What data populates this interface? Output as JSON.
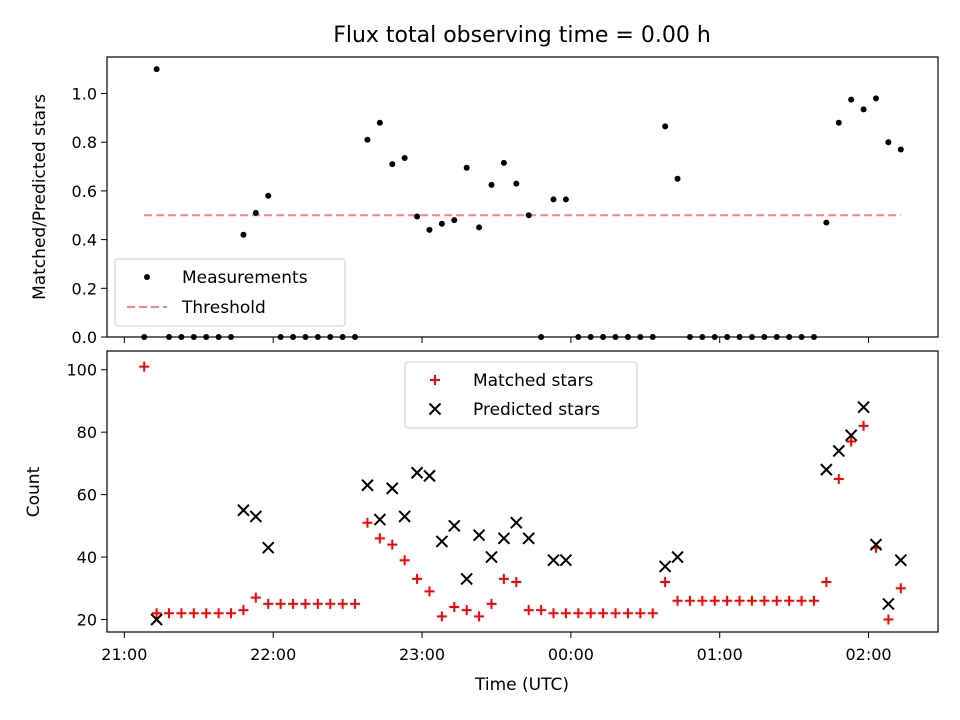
{
  "title": "Flux total observing time = 0.00 h",
  "colors": {
    "measurement": "#000000",
    "threshold": "#ff7f7f",
    "matched": "#ff0000",
    "predicted": "#000000"
  },
  "chart_data": [
    {
      "type": "scatter",
      "title": "Flux total observing time = 0.00 h",
      "xlabel": "",
      "ylabel": "Matched/Predicted stars",
      "x_axis_format": "HH:MM (UTC)",
      "xlim": [
        "2024-01-01T20:53",
        "2024-01-02T02:28"
      ],
      "ylim": [
        0,
        1.15
      ],
      "yticks": [
        0.0,
        0.2,
        0.4,
        0.6,
        0.8,
        1.0
      ],
      "ytick_labels": [
        "0.0",
        "0.2",
        "0.4",
        "0.6",
        "0.8",
        "1.0"
      ],
      "legend_position": "lower-left",
      "threshold": {
        "name": "Threshold",
        "value": 0.5,
        "x": [
          "21:08",
          "02:13"
        ]
      },
      "series": [
        {
          "name": "Measurements",
          "marker": "dot",
          "points": [
            [
              "21:08",
              0
            ],
            [
              "21:13",
              1.1
            ],
            [
              "21:18",
              0
            ],
            [
              "21:23",
              0
            ],
            [
              "21:28",
              0
            ],
            [
              "21:33",
              0
            ],
            [
              "21:38",
              0
            ],
            [
              "21:43",
              0
            ],
            [
              "21:48",
              0.42
            ],
            [
              "21:53",
              0.51
            ],
            [
              "21:58",
              0.58
            ],
            [
              "22:03",
              0
            ],
            [
              "22:08",
              0
            ],
            [
              "22:13",
              0
            ],
            [
              "22:18",
              0
            ],
            [
              "22:23",
              0
            ],
            [
              "22:28",
              0
            ],
            [
              "22:33",
              0
            ],
            [
              "22:38",
              0.81
            ],
            [
              "22:43",
              0.88
            ],
            [
              "22:48",
              0.71
            ],
            [
              "22:53",
              0.735
            ],
            [
              "22:58",
              0.495
            ],
            [
              "23:03",
              0.44
            ],
            [
              "23:08",
              0.465
            ],
            [
              "23:13",
              0.48
            ],
            [
              "23:18",
              0.695
            ],
            [
              "23:23",
              0.45
            ],
            [
              "23:28",
              0.625
            ],
            [
              "23:33",
              0.715
            ],
            [
              "23:38",
              0.63
            ],
            [
              "23:43",
              0.5
            ],
            [
              "23:48",
              0
            ],
            [
              "23:53",
              0.565
            ],
            [
              "23:58",
              0.565
            ],
            [
              "00:03",
              0
            ],
            [
              "00:08",
              0
            ],
            [
              "00:13",
              0
            ],
            [
              "00:18",
              0
            ],
            [
              "00:23",
              0
            ],
            [
              "00:28",
              0
            ],
            [
              "00:33",
              0
            ],
            [
              "00:38",
              0.865
            ],
            [
              "00:43",
              0.65
            ],
            [
              "00:48",
              0
            ],
            [
              "00:53",
              0
            ],
            [
              "00:58",
              0
            ],
            [
              "01:03",
              0
            ],
            [
              "01:08",
              0
            ],
            [
              "01:13",
              0
            ],
            [
              "01:18",
              0
            ],
            [
              "01:23",
              0
            ],
            [
              "01:28",
              0
            ],
            [
              "01:33",
              0
            ],
            [
              "01:38",
              0
            ],
            [
              "01:43",
              0.47
            ],
            [
              "01:48",
              0.88
            ],
            [
              "01:53",
              0.975
            ],
            [
              "01:58",
              0.935
            ],
            [
              "02:03",
              0.98
            ],
            [
              "02:08",
              0.8
            ],
            [
              "02:13",
              0.77
            ]
          ]
        }
      ]
    },
    {
      "type": "scatter",
      "title": "",
      "xlabel": "Time (UTC)",
      "ylabel": "Count",
      "x_axis_format": "HH:MM (UTC)",
      "xlim": [
        "2024-01-01T20:53",
        "2024-01-02T02:28"
      ],
      "ylim": [
        16,
        106
      ],
      "xticks": [
        "21:00",
        "22:00",
        "23:00",
        "00:00",
        "01:00",
        "02:00"
      ],
      "yticks": [
        20,
        40,
        60,
        80,
        100
      ],
      "ytick_labels": [
        "20",
        "40",
        "60",
        "80",
        "100"
      ],
      "legend_position": "upper-center",
      "series": [
        {
          "name": "Matched stars",
          "marker": "plus",
          "points": [
            [
              "21:08",
              101
            ],
            [
              "21:13",
              22
            ],
            [
              "21:18",
              22
            ],
            [
              "21:23",
              22
            ],
            [
              "21:28",
              22
            ],
            [
              "21:33",
              22
            ],
            [
              "21:38",
              22
            ],
            [
              "21:43",
              22
            ],
            [
              "21:48",
              23
            ],
            [
              "21:53",
              27
            ],
            [
              "21:58",
              25
            ],
            [
              "22:03",
              25
            ],
            [
              "22:08",
              25
            ],
            [
              "22:13",
              25
            ],
            [
              "22:18",
              25
            ],
            [
              "22:23",
              25
            ],
            [
              "22:28",
              25
            ],
            [
              "22:33",
              25
            ],
            [
              "22:38",
              51
            ],
            [
              "22:43",
              46
            ],
            [
              "22:48",
              44
            ],
            [
              "22:53",
              39
            ],
            [
              "22:58",
              33
            ],
            [
              "23:03",
              29
            ],
            [
              "23:08",
              21
            ],
            [
              "23:13",
              24
            ],
            [
              "23:18",
              23
            ],
            [
              "23:23",
              21
            ],
            [
              "23:28",
              25
            ],
            [
              "23:33",
              33
            ],
            [
              "23:38",
              32
            ],
            [
              "23:43",
              23
            ],
            [
              "23:48",
              23
            ],
            [
              "23:53",
              22
            ],
            [
              "23:58",
              22
            ],
            [
              "00:03",
              22
            ],
            [
              "00:08",
              22
            ],
            [
              "00:13",
              22
            ],
            [
              "00:18",
              22
            ],
            [
              "00:23",
              22
            ],
            [
              "00:28",
              22
            ],
            [
              "00:33",
              22
            ],
            [
              "00:38",
              32
            ],
            [
              "00:43",
              26
            ],
            [
              "00:48",
              26
            ],
            [
              "00:53",
              26
            ],
            [
              "00:58",
              26
            ],
            [
              "01:03",
              26
            ],
            [
              "01:08",
              26
            ],
            [
              "01:13",
              26
            ],
            [
              "01:18",
              26
            ],
            [
              "01:23",
              26
            ],
            [
              "01:28",
              26
            ],
            [
              "01:33",
              26
            ],
            [
              "01:38",
              26
            ],
            [
              "01:43",
              32
            ],
            [
              "01:48",
              65
            ],
            [
              "01:53",
              77
            ],
            [
              "01:58",
              82
            ],
            [
              "02:03",
              43
            ],
            [
              "02:08",
              20
            ],
            [
              "02:13",
              30
            ]
          ]
        },
        {
          "name": "Predicted stars",
          "marker": "x",
          "points": [
            [
              "21:13",
              20
            ],
            [
              "21:48",
              55
            ],
            [
              "21:53",
              53
            ],
            [
              "21:58",
              43
            ],
            [
              "22:38",
              63
            ],
            [
              "22:43",
              52
            ],
            [
              "22:48",
              62
            ],
            [
              "22:53",
              53
            ],
            [
              "22:58",
              67
            ],
            [
              "23:03",
              66
            ],
            [
              "23:08",
              45
            ],
            [
              "23:13",
              50
            ],
            [
              "23:18",
              33
            ],
            [
              "23:23",
              47
            ],
            [
              "23:28",
              40
            ],
            [
              "23:33",
              46
            ],
            [
              "23:38",
              51
            ],
            [
              "23:43",
              46
            ],
            [
              "23:53",
              39
            ],
            [
              "23:58",
              39
            ],
            [
              "00:38",
              37
            ],
            [
              "00:43",
              40
            ],
            [
              "01:43",
              68
            ],
            [
              "01:48",
              74
            ],
            [
              "01:53",
              79
            ],
            [
              "01:58",
              88
            ],
            [
              "02:03",
              44
            ],
            [
              "02:08",
              25
            ],
            [
              "02:13",
              39
            ]
          ]
        }
      ]
    }
  ]
}
